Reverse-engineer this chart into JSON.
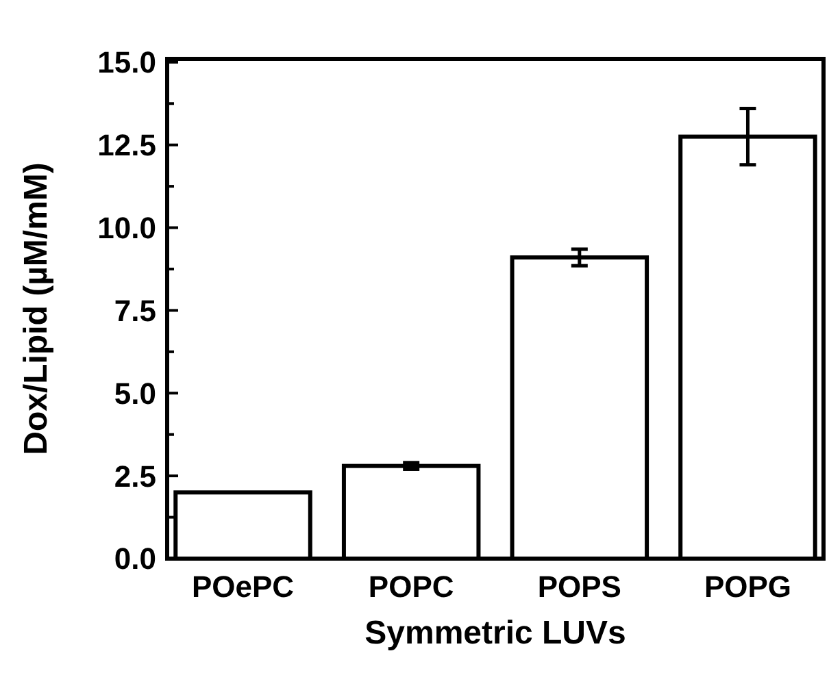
{
  "chart_data": {
    "type": "bar",
    "xlabel": "Symmetric LUVs",
    "ylabel": "Dox/Lipid (µM/mM)",
    "categories": [
      "POePC",
      "POPC",
      "POPS",
      "POPG"
    ],
    "values": [
      2.0,
      2.8,
      9.1,
      12.75
    ],
    "errors": [
      null,
      0.1,
      0.25,
      0.85
    ],
    "color": "#ffffff",
    "ylim": [
      0,
      15.1
    ],
    "yticks": [
      {
        "value": 0,
        "label": "0.0"
      },
      {
        "value": 1.25,
        "label": null
      },
      2.5,
      {
        "value": 3.75,
        "label": null
      },
      {
        "value": 5,
        "label": "5.0"
      },
      {
        "value": 6.25,
        "label": null
      },
      7.5,
      {
        "value": 8.75,
        "label": null
      },
      {
        "value": 10,
        "label": "10.0"
      },
      {
        "value": 11.25,
        "label": null
      },
      12.5,
      {
        "value": 13.75,
        "label": null
      },
      {
        "value": 15,
        "label": "15.0"
      }
    ],
    "grid": false
  }
}
